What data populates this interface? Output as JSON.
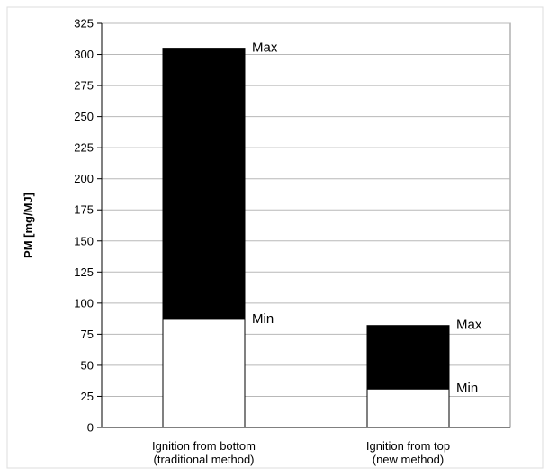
{
  "chart_data": {
    "type": "bar",
    "stacked": true,
    "ylabel": "PM [mg/MJ]",
    "xlabel": "",
    "ylim": [
      0,
      325
    ],
    "yticks": [
      0,
      25,
      50,
      75,
      100,
      125,
      150,
      175,
      200,
      225,
      250,
      275,
      300,
      325
    ],
    "grid": true,
    "categories": [
      [
        "Ignition from bottom",
        "(traditional method)"
      ],
      [
        "Ignition from top",
        "(new method)"
      ]
    ],
    "series": [
      {
        "values": [
          87,
          31
        ],
        "color": "#ffffff"
      },
      {
        "values": [
          218,
          51
        ],
        "color": "#000000"
      }
    ],
    "annotations": [
      {
        "category": 0,
        "min_label": "Min",
        "max_label": "Max",
        "min": 87,
        "max": 305
      },
      {
        "category": 1,
        "min_label": "Min",
        "max_label": "Max",
        "min": 31,
        "max": 82
      }
    ]
  }
}
